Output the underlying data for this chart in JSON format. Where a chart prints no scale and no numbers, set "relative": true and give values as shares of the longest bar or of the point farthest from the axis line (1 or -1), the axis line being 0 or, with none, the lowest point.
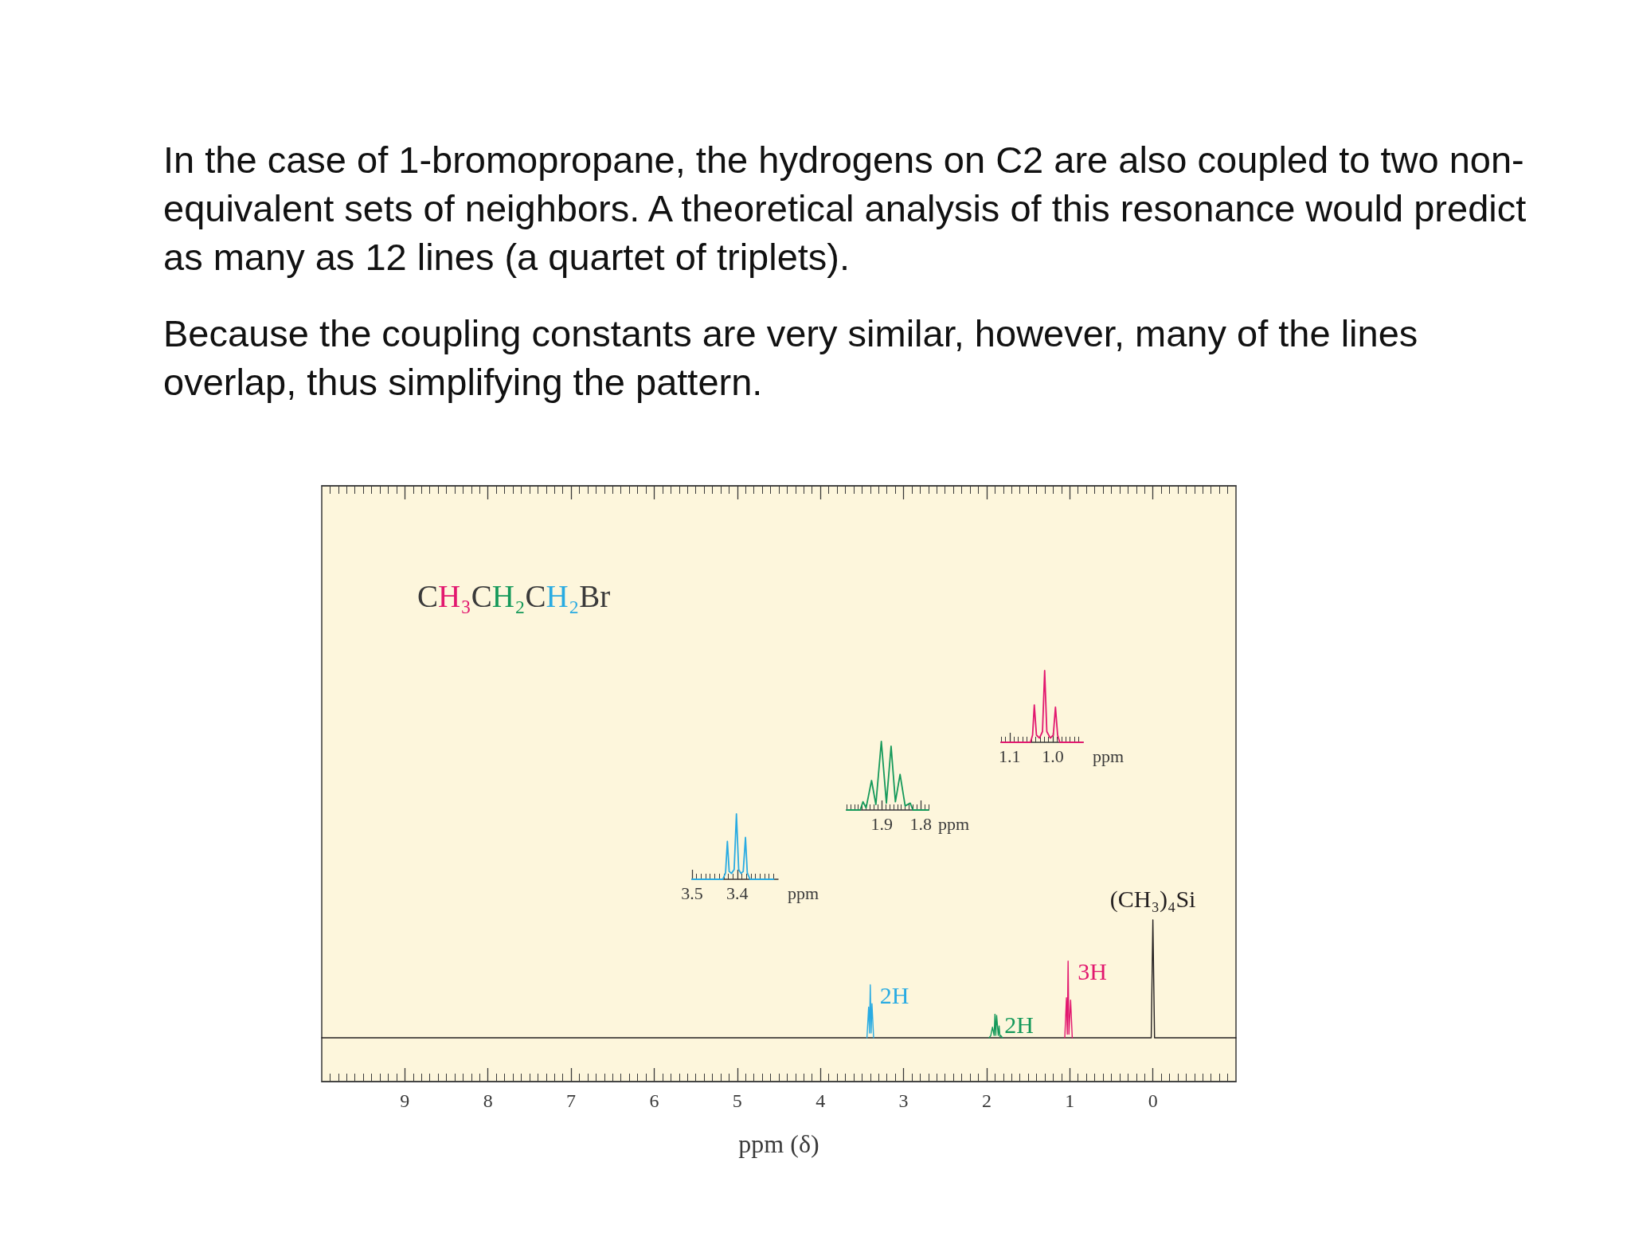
{
  "chart_data": [
    {
      "type": "line",
      "xlabel": "ppm (δ)",
      "relative": true,
      "xlim": [
        10,
        -1
      ],
      "xticks": [
        9,
        8,
        7,
        6,
        5,
        4,
        3,
        2,
        1,
        0
      ],
      "series": [
        {
          "color": "#e2186f",
          "x": [
            1.06,
            1.04,
            1.03,
            1.02,
            1.01,
            0.99,
            0.97
          ],
          "values": [
            0,
            0.34,
            0.03,
            0.65,
            0.03,
            0.32,
            0
          ]
        },
        {
          "color": "#15995a",
          "x": [
            1.97,
            1.95,
            1.93,
            1.91,
            1.9,
            1.89,
            1.88,
            1.86,
            1.85,
            1.84,
            1.83,
            1.81
          ],
          "values": [
            0,
            0.02,
            0.09,
            0.02,
            0.2,
            0.02,
            0.19,
            0.02,
            0.1,
            0.01,
            0.02,
            0
          ]
        },
        {
          "color": "#29abe2",
          "x": [
            3.44,
            3.42,
            3.41,
            3.4,
            3.39,
            3.38,
            3.36
          ],
          "values": [
            0,
            0.26,
            0.04,
            0.45,
            0.04,
            0.29,
            0
          ]
        },
        {
          "color": "#231f20",
          "x": [
            10,
            0.02,
            0,
            -0.02,
            -1
          ],
          "values": [
            0,
            0,
            1,
            0,
            0
          ]
        }
      ],
      "annotations": [
        "In the case of 1-bromopropane, the hydrogens on C2 are also coupled to two non-equivalent sets of neighbors. A theoretical analysis of this resonance would predict as many as 12 lines (a quartet of triplets).",
        "Because the coupling constants are very similar, however, many of the lines overlap, thus simplifying the pattern.",
        "CH₃CH₂CH₂Br",
        {
          "text": "2H",
          "x": 3.4,
          "y": 0.45
        },
        {
          "text": "2H",
          "x": 1.9,
          "y": 0.2
        },
        {
          "text": "3H",
          "x": 1.02,
          "y": 0.65
        },
        {
          "text": "(CH₃)₄Si",
          "x": 0,
          "y": 1
        }
      ]
    },
    {
      "type": "line",
      "relative": true,
      "xlabel": "ppm",
      "xlim": [
        3.5,
        3.31
      ],
      "xticks": [
        3.5,
        3.4
      ],
      "color": "#29abe2",
      "x": [
        3.5,
        3.432,
        3.426,
        3.422,
        3.418,
        3.413,
        3.407,
        3.402,
        3.397,
        3.392,
        3.387,
        3.382,
        3.378,
        3.372,
        3.32
      ],
      "values": [
        0,
        0,
        0.1,
        0.58,
        0.12,
        0.09,
        0.15,
        1,
        0.15,
        0.09,
        0.12,
        0.64,
        0.1,
        0,
        0
      ]
    },
    {
      "type": "line",
      "relative": true,
      "xlabel": "ppm",
      "xlim": [
        1.99,
        1.78
      ],
      "xticks": [
        1.9,
        1.8
      ],
      "color": "#15995a",
      "x": [
        1.99,
        1.955,
        1.948,
        1.94,
        1.926,
        1.915,
        1.901,
        1.888,
        1.876,
        1.865,
        1.853,
        1.84,
        1.827,
        1.82,
        1.78
      ],
      "values": [
        0,
        0,
        0.12,
        0.03,
        0.43,
        0.08,
        1,
        0.1,
        0.93,
        0.12,
        0.52,
        0.06,
        0.1,
        0,
        0
      ]
    },
    {
      "type": "line",
      "relative": true,
      "xlabel": "ppm",
      "xlim": [
        1.12,
        0.93
      ],
      "xticks": [
        1.1,
        {
          "value": 1,
          "label": "1.0"
        }
      ],
      "color": "#e2186f",
      "x": [
        1.12,
        1.052,
        1.047,
        1.043,
        1.038,
        1.031,
        1.024,
        1.019,
        1.014,
        1.006,
        0.999,
        0.994,
        0.989,
        0.984,
        0.93
      ],
      "values": [
        0,
        0,
        0.1,
        0.52,
        0.1,
        0.06,
        0.15,
        1,
        0.15,
        0.06,
        0.1,
        0.49,
        0.1,
        0,
        0
      ]
    }
  ]
}
